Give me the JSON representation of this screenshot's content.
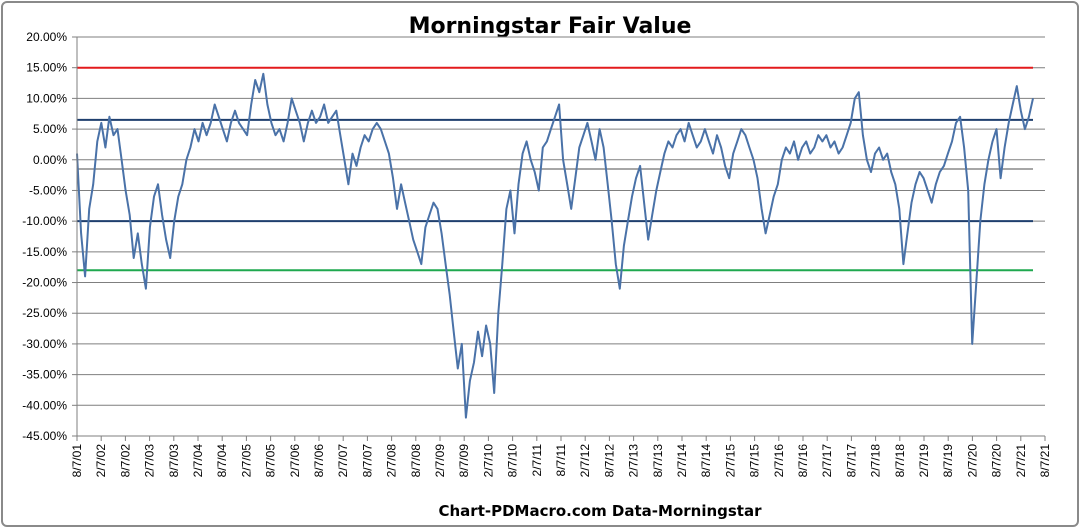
{
  "chart_data": {
    "type": "line",
    "title": "Morningstar Fair Value",
    "footer": "Chart-PDMacro.com  Data-Morningstar",
    "ylim": [
      -45,
      20
    ],
    "y_ticks": [
      20,
      15,
      10,
      5,
      0,
      -5,
      -10,
      -15,
      -20,
      -25,
      -30,
      -35,
      -40,
      -45
    ],
    "y_tick_labels": [
      "20.00%",
      "15.00%",
      "10.00%",
      "5.00%",
      "0.00%",
      "-5.00%",
      "-10.00%",
      "-15.00%",
      "-20.00%",
      "-25.00%",
      "-30.00%",
      "-35.00%",
      "-40.00%",
      "-45.00%"
    ],
    "x_tick_labels": [
      "8/7/01",
      "2/7/02",
      "8/7/02",
      "2/7/03",
      "8/7/03",
      "2/7/04",
      "8/7/04",
      "2/7/05",
      "8/7/05",
      "2/7/06",
      "8/7/06",
      "2/7/07",
      "8/7/07",
      "2/7/08",
      "8/7/08",
      "2/7/09",
      "8/7/09",
      "2/7/10",
      "8/7/10",
      "2/7/11",
      "8/7/11",
      "2/7/12",
      "8/7/12",
      "2/7/13",
      "8/7/13",
      "2/7/14",
      "8/7/14",
      "2/7/15",
      "8/7/15",
      "2/7/16",
      "8/7/16",
      "2/7/17",
      "8/7/17",
      "2/7/18",
      "8/7/18",
      "2/7/19",
      "8/7/19",
      "2/7/20",
      "8/7/20",
      "2/7/21",
      "8/7/21"
    ],
    "grid": true,
    "reference_lines": [
      {
        "value": 15,
        "color": "#e31a1c"
      },
      {
        "value": 6.5,
        "color": "#1f3f6e"
      },
      {
        "value": -1.5,
        "color": "#a6a6a6"
      },
      {
        "value": -10,
        "color": "#1f3f6e"
      },
      {
        "value": -18,
        "color": "#1fa84f"
      }
    ],
    "series": [
      {
        "color": "#4a72a8",
        "values": [
          1,
          -12,
          -19,
          -8,
          -4,
          3,
          6,
          2,
          7,
          4,
          5,
          0,
          -5,
          -9,
          -16,
          -12,
          -17,
          -21,
          -11,
          -6,
          -4,
          -9,
          -13,
          -16,
          -10,
          -6,
          -4,
          0,
          2,
          5,
          3,
          6,
          4,
          6,
          9,
          7,
          5,
          3,
          6,
          8,
          6,
          5,
          4,
          9,
          13,
          11,
          14,
          9,
          6,
          4,
          5,
          3,
          6,
          10,
          8,
          6,
          3,
          6,
          8,
          6,
          7,
          9,
          6,
          7,
          8,
          4,
          0,
          -4,
          1,
          -1,
          2,
          4,
          3,
          5,
          6,
          5,
          3,
          1,
          -3,
          -8,
          -4,
          -7,
          -10,
          -13,
          -15,
          -17,
          -11,
          -9,
          -7,
          -8,
          -12,
          -17,
          -22,
          -28,
          -34,
          -30,
          -42,
          -36,
          -33,
          -28,
          -32,
          -27,
          -30,
          -38,
          -25,
          -17,
          -8,
          -5,
          -12,
          -4,
          1,
          3,
          0,
          -2,
          -5,
          2,
          3,
          5,
          7,
          9,
          0,
          -4,
          -8,
          -3,
          2,
          4,
          6,
          3,
          0,
          5,
          2,
          -4,
          -10,
          -17,
          -21,
          -14,
          -10,
          -6,
          -3,
          -1,
          -7,
          -13,
          -9,
          -5,
          -2,
          1,
          3,
          2,
          4,
          5,
          3,
          6,
          4,
          2,
          3,
          5,
          3,
          1,
          4,
          2,
          -1,
          -3,
          1,
          3,
          5,
          4,
          2,
          0,
          -3,
          -8,
          -12,
          -9,
          -6,
          -4,
          0,
          2,
          1,
          3,
          0,
          2,
          3,
          1,
          2,
          4,
          3,
          4,
          2,
          3,
          1,
          2,
          4,
          6,
          10,
          11,
          4,
          0,
          -2,
          1,
          2,
          0,
          1,
          -2,
          -4,
          -8,
          -17,
          -12,
          -7,
          -4,
          -2,
          -3,
          -5,
          -7,
          -4,
          -2,
          -1,
          1,
          3,
          6,
          7,
          2,
          -5,
          -30,
          -20,
          -10,
          -4,
          0,
          3,
          5,
          -3,
          2,
          6,
          9,
          12,
          8,
          5,
          7,
          10
        ]
      }
    ]
  }
}
